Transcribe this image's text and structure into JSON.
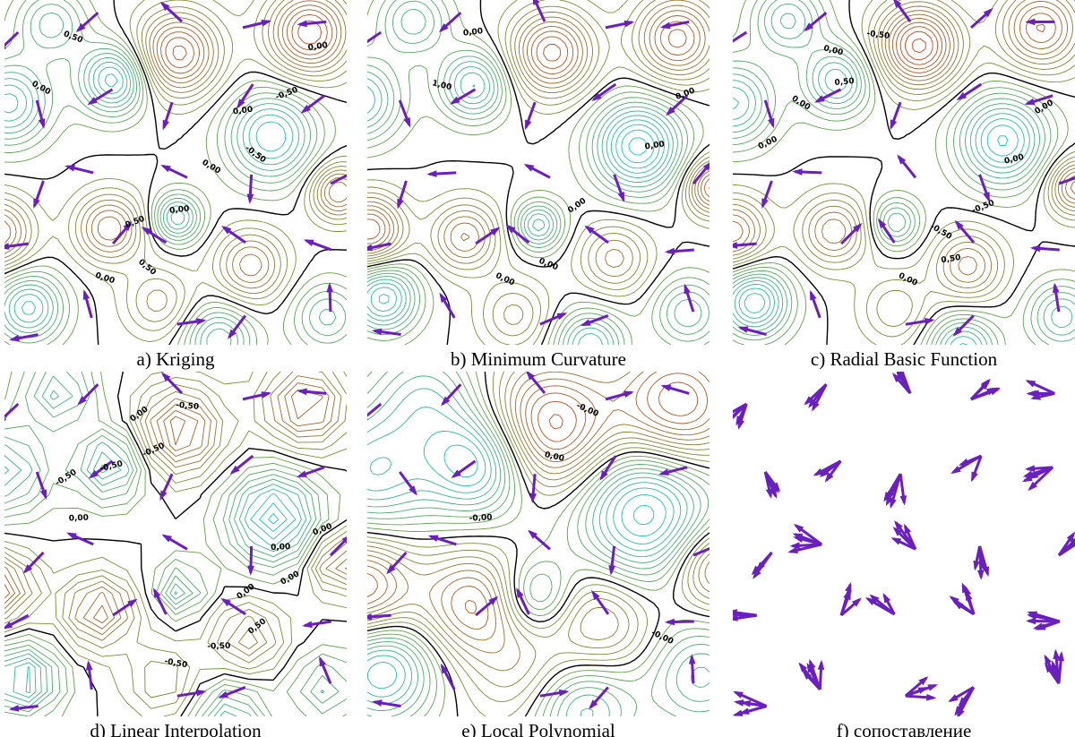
{
  "panels": [
    {
      "caption": "a) Kriging",
      "contour_labels": [
        "0,00",
        "0,50",
        "-0,50",
        "0,50",
        "0,00",
        "-0,50",
        "0,00",
        "0,00",
        "0,00",
        "0,50",
        "0,00"
      ]
    },
    {
      "caption": "b) Minimum Curvature",
      "contour_labels": [
        "1,00",
        "0,00",
        "0,00",
        "0,00",
        "0,00",
        "0,00",
        "0,00"
      ]
    },
    {
      "caption": "c) Radial Basic Function",
      "contour_labels": [
        "0,50",
        "0,50",
        "0,00",
        "-0,50",
        "-0,50",
        "0,00",
        "0,00",
        "0,00",
        "0,00",
        "-0,50",
        "0,00"
      ]
    },
    {
      "caption": "d) Linear Interpolation",
      "contour_labels": [
        "-0,50",
        "0,50",
        "0,00",
        "-0,50",
        "0,00",
        "-0,50",
        "-0,50",
        "0,00",
        "0,00",
        "0,00",
        "-0,50",
        "-0,50",
        "0,00"
      ]
    },
    {
      "caption": "e) Local Polynomial",
      "contour_labels": [
        "0,00",
        "-0,00",
        "-0,00",
        "-0,00"
      ]
    },
    {
      "caption": "f) сопоставление"
    }
  ]
}
